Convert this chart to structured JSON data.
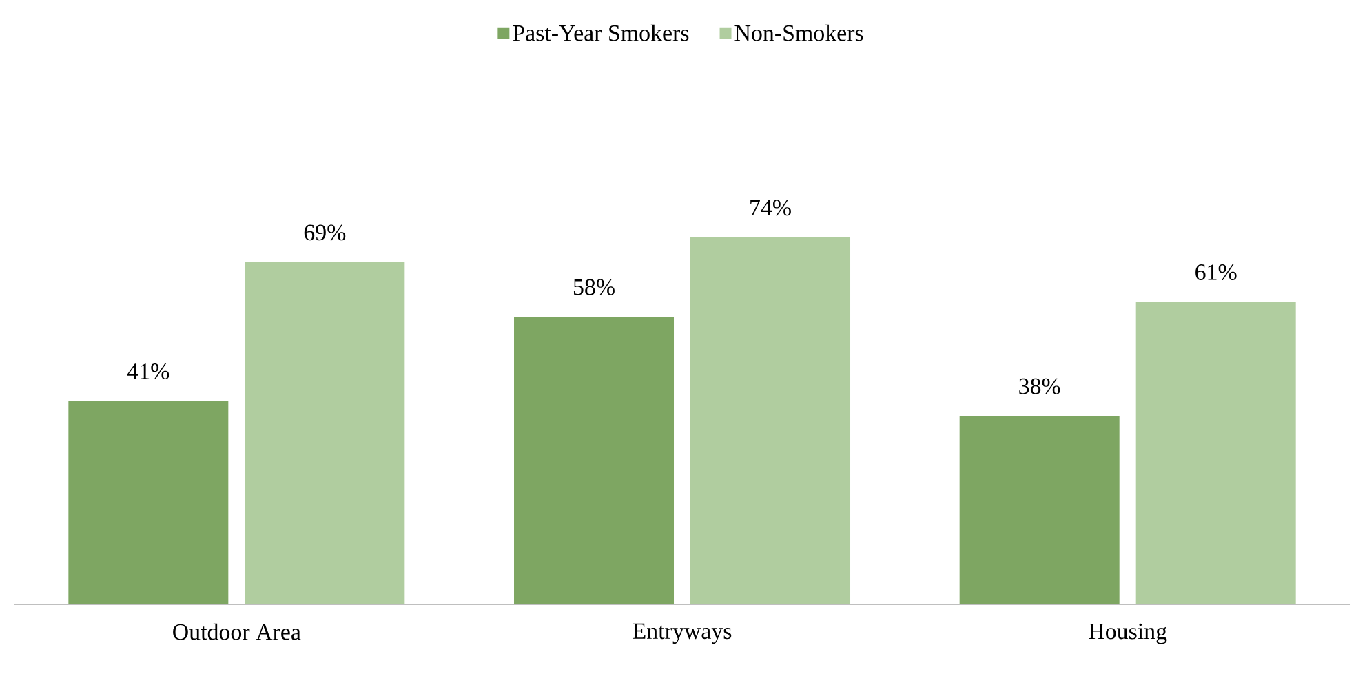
{
  "chart_data": {
    "type": "bar",
    "categories": [
      "Outdoor Area",
      "Entryways",
      "Housing"
    ],
    "series": [
      {
        "name": "Past-Year Smokers",
        "color": "#7ea662",
        "values": [
          41,
          58,
          38
        ],
        "value_labels": [
          "41%",
          "58%",
          "38%"
        ]
      },
      {
        "name": "Non-Smokers",
        "color": "#b0cd9f",
        "values": [
          69,
          74,
          61
        ],
        "value_labels": [
          "69%",
          "74%",
          "61%"
        ]
      }
    ],
    "legend": "top"
  }
}
